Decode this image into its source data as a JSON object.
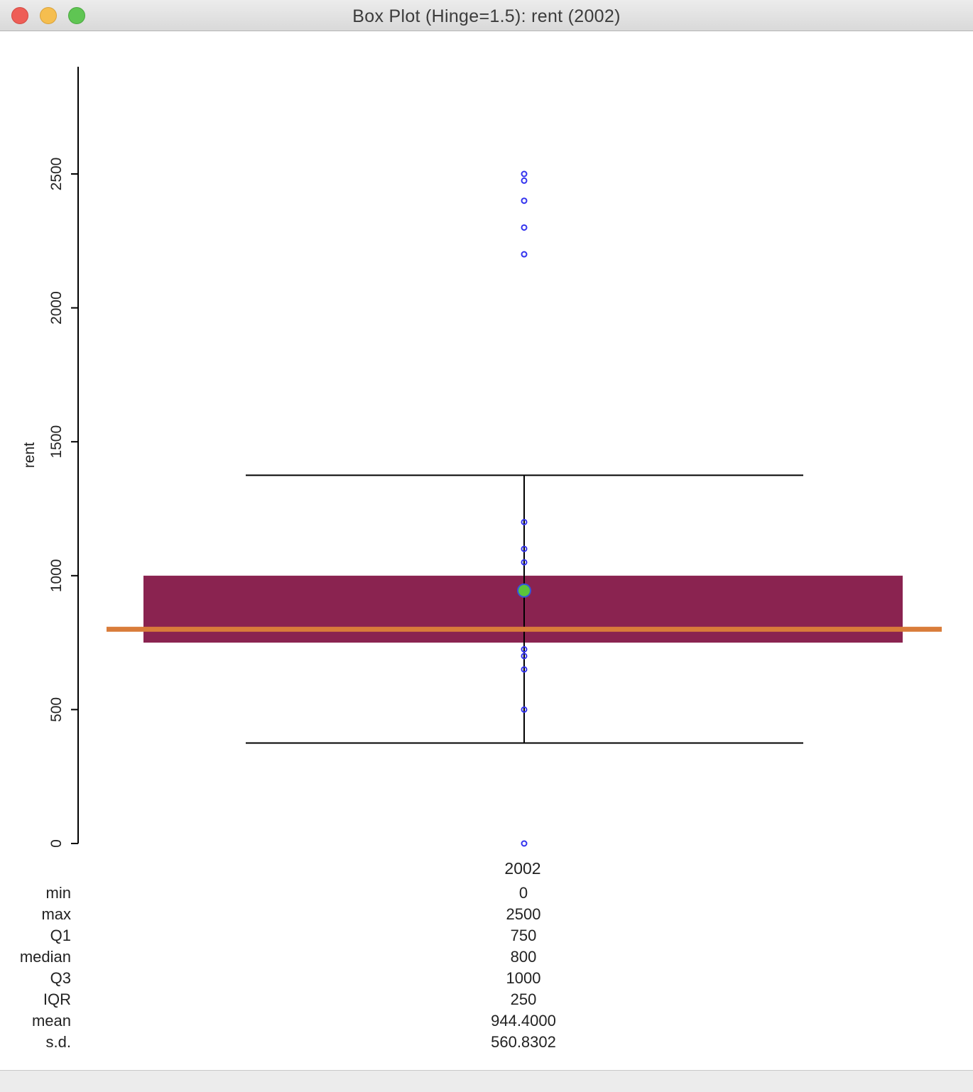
{
  "window": {
    "title": "Box Plot (Hinge=1.5): rent (2002)"
  },
  "colors": {
    "box": "#8a2350",
    "median": "#d97c3a",
    "outlier": "#3333ee",
    "mean_fill": "#5cc43a",
    "mean_stroke": "#3355dd",
    "axis": "#000000"
  },
  "chart_data": {
    "type": "box",
    "title": "Box Plot (Hinge=1.5): rent (2002)",
    "ylabel": "rent",
    "xlabel": "2002",
    "ylim": [
      0,
      2900
    ],
    "yticks": [
      0,
      500,
      1000,
      1500,
      2000,
      2500
    ],
    "ytick_labels": [
      "0",
      "500",
      "1000",
      "1500",
      "2000",
      "2500"
    ],
    "category": "2002",
    "hinge": 1.5,
    "q1": 750,
    "median": 800,
    "q3": 1000,
    "lower_fence": 375,
    "upper_fence": 1375,
    "mean": 944.4,
    "points": [
      0,
      500,
      650,
      700,
      725,
      1050,
      1100,
      1200,
      2200,
      2300,
      2400,
      2475,
      2500
    ]
  },
  "stats": {
    "category_label": "2002",
    "rows": [
      {
        "label": "min",
        "value": "0"
      },
      {
        "label": "max",
        "value": "2500"
      },
      {
        "label": "Q1",
        "value": "750"
      },
      {
        "label": "median",
        "value": "800"
      },
      {
        "label": "Q3",
        "value": "1000"
      },
      {
        "label": "IQR",
        "value": "250"
      },
      {
        "label": "mean",
        "value": "944.4000"
      },
      {
        "label": "s.d.",
        "value": "560.8302"
      }
    ]
  }
}
